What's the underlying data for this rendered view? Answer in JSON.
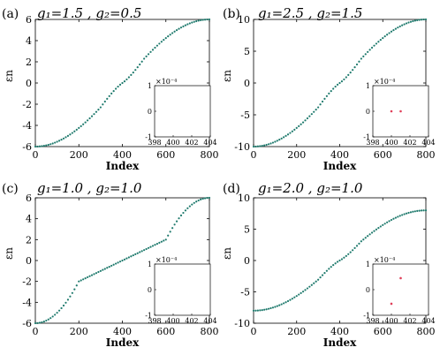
{
  "chart_data": [
    {
      "panel": "(a)",
      "type": "scatter",
      "title": "g₁=1.5 , g₂=0.5",
      "xlabel": "Index",
      "ylabel": "εn",
      "xlim": [
        0,
        800
      ],
      "ylim": [
        -6,
        6
      ],
      "xticks": [
        0,
        200,
        400,
        600,
        800
      ],
      "yticks": [
        -6,
        -4,
        -2,
        0,
        2,
        4,
        6
      ],
      "color": "#1f7a6d",
      "curve": {
        "n": 800,
        "A": 6.0,
        "bandlo": 0,
        "bandhi": 0,
        "halfband": 0,
        "edgelo": -6,
        "edgehi": 6
      },
      "inset": {
        "xlim": [
          398,
          404
        ],
        "ylim": [
          -1,
          1
        ],
        "xticks": [
          398,
          400,
          402,
          404
        ],
        "yticks": [
          -1,
          0,
          1
        ],
        "scale_label": "×10⁻⁴",
        "points": []
      }
    },
    {
      "panel": "(b)",
      "type": "scatter",
      "title": "g₁=2.5 , g₂=1.5",
      "xlabel": "Index",
      "ylabel": "εn",
      "xlim": [
        0,
        800
      ],
      "ylim": [
        -10,
        10
      ],
      "xticks": [
        0,
        200,
        400,
        600,
        800
      ],
      "yticks": [
        -10,
        -5,
        0,
        5,
        10
      ],
      "color": "#1f7a6d",
      "curve": {
        "n": 800,
        "A": 10.0,
        "bandlo": 0,
        "bandhi": 0,
        "halfband": 0,
        "edgelo": -10,
        "edgehi": 10
      },
      "inset": {
        "xlim": [
          398,
          404
        ],
        "ylim": [
          -1,
          1
        ],
        "xticks": [
          398,
          400,
          402,
          404
        ],
        "yticks": [
          -1,
          0,
          1
        ],
        "scale_label": "×10⁻⁴",
        "points": [
          [
            400,
            0
          ],
          [
            401,
            0
          ]
        ]
      }
    },
    {
      "panel": "(c)",
      "type": "scatter",
      "title": "g₁=1.0 , g₂=1.0",
      "xlabel": "Index",
      "ylabel": "εn",
      "xlim": [
        0,
        800
      ],
      "ylim": [
        -6,
        6
      ],
      "xticks": [
        0,
        200,
        400,
        600,
        800
      ],
      "yticks": [
        -6,
        -4,
        -2,
        0,
        2,
        4,
        6
      ],
      "color": "#1f7a6d",
      "curve": {
        "n": 800,
        "A": 6.0,
        "bandlo": -2,
        "bandhi": 2,
        "halfband": 2,
        "edgelo": -6,
        "edgehi": 6
      },
      "inset": {
        "xlim": [
          398,
          404
        ],
        "ylim": [
          -1,
          1
        ],
        "xticks": [
          398,
          400,
          402,
          404
        ],
        "yticks": [
          -1,
          0,
          1
        ],
        "scale_label": "×10⁻⁴",
        "points": []
      }
    },
    {
      "panel": "(d)",
      "type": "scatter",
      "title": "g₁=2.0 , g₂=1.0",
      "xlabel": "Index",
      "ylabel": "εn",
      "xlim": [
        0,
        800
      ],
      "ylim": [
        -10,
        10
      ],
      "xticks": [
        0,
        200,
        400,
        600,
        800
      ],
      "yticks": [
        -10,
        -5,
        0,
        5,
        10
      ],
      "color": "#1f7a6d",
      "curve": {
        "n": 800,
        "A": 8.0,
        "bandlo": 0,
        "bandhi": 0,
        "halfband": 0,
        "edgelo": -8,
        "edgehi": 8
      },
      "inset": {
        "xlim": [
          398,
          404
        ],
        "ylim": [
          -1,
          1
        ],
        "xticks": [
          398,
          400,
          402,
          404
        ],
        "yticks": [
          -1,
          0,
          1
        ],
        "scale_label": "×10⁻⁴",
        "points": [
          [
            400,
            -0.55
          ],
          [
            401,
            0.45
          ]
        ]
      }
    }
  ],
  "inset_point_color": "#e0405a"
}
